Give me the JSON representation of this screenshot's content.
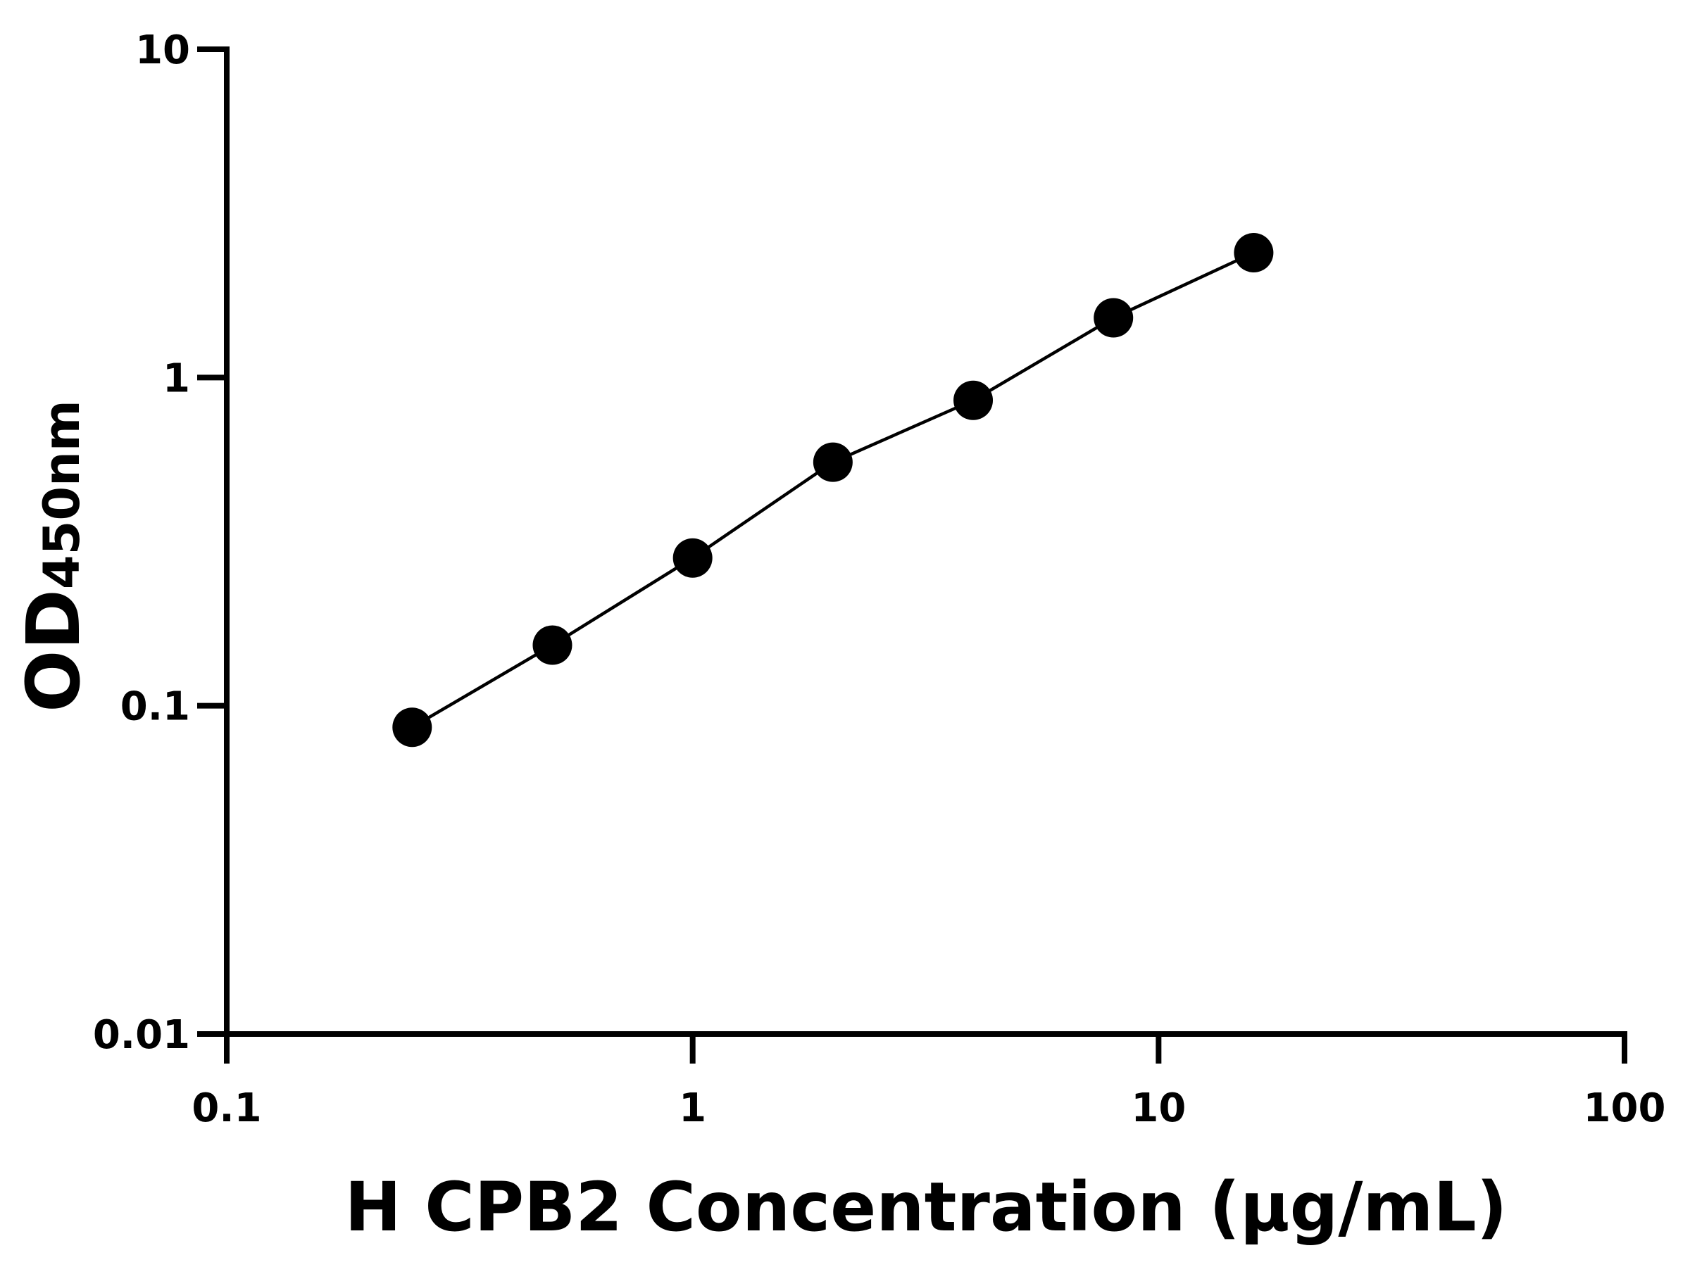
{
  "chart_data": {
    "type": "line",
    "x_label": "H CPB2 Concentration (μg/mL)",
    "y_label": "OD",
    "y_label_sub": "450nm",
    "x": [
      0.25,
      0.5,
      1,
      2,
      4,
      8,
      16
    ],
    "series": [
      {
        "color": "#000000",
        "values": [
          0.086,
          0.153,
          0.282,
          0.552,
          0.852,
          1.52,
          2.4
        ]
      }
    ],
    "xscale": "log",
    "yscale": "log",
    "xlim": [
      0.1,
      100
    ],
    "ylim": [
      0.01,
      10
    ],
    "xticks": [
      0.1,
      1,
      10,
      100
    ],
    "yticks": [
      0.01,
      0.1,
      1,
      10
    ],
    "markers": true
  }
}
